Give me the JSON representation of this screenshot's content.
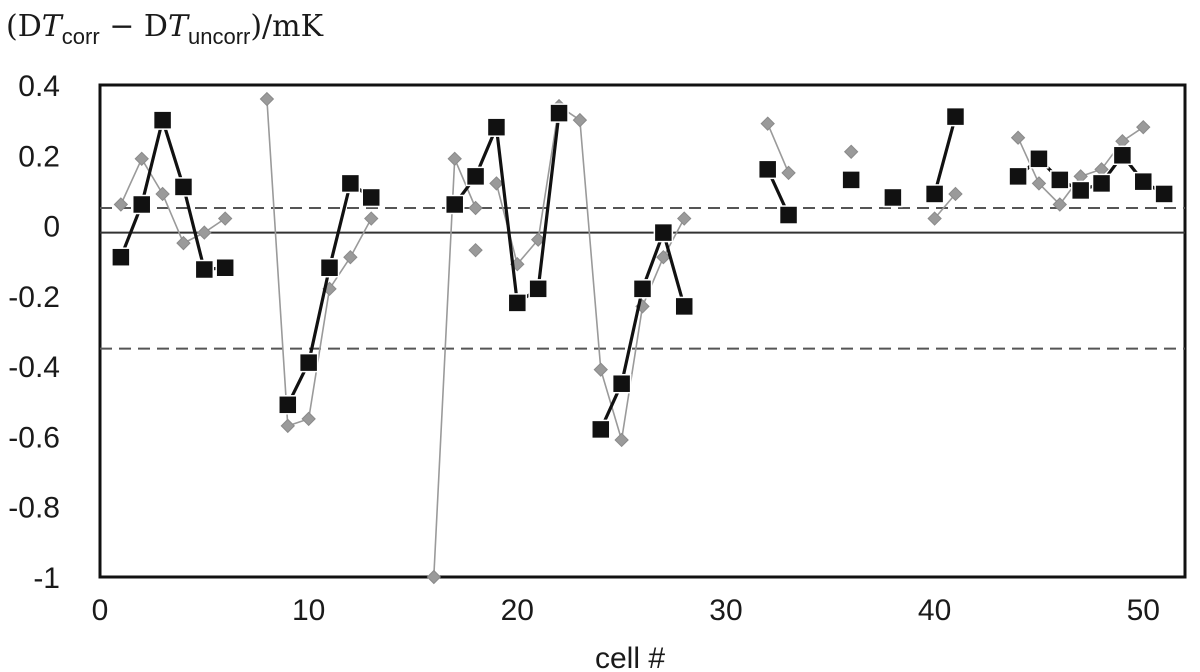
{
  "chart_data": {
    "type": "scatter",
    "ylabel": {
      "open": "(",
      "d1": "D",
      "t1": "T",
      "sub1": "corr",
      "minus": " − ",
      "d2": "D",
      "t2": "T",
      "sub2": "uncorr",
      "close": ")/mK"
    },
    "xlabel": "cell #",
    "xlim": [
      0,
      52
    ],
    "ylim": [
      -1,
      0.4
    ],
    "xticks": [
      "0",
      "10",
      "20",
      "30",
      "40",
      "50"
    ],
    "yticks": [
      "0.4",
      "0.2",
      "0",
      "-0.2",
      "-0.4",
      "-0.6",
      "-0.8",
      "-1"
    ],
    "reference_lines": [
      {
        "y": -0.02,
        "style": "solid",
        "color": "#333333"
      },
      {
        "y": 0.05,
        "style": "dashed",
        "color": "#555555"
      },
      {
        "y": -0.35,
        "style": "dashed",
        "color": "#555555"
      }
    ],
    "series": [
      {
        "style": "black-squares",
        "color": "#111111",
        "segments": [
          [
            [
              1,
              -0.09
            ],
            [
              2,
              0.06
            ],
            [
              3,
              0.3
            ],
            [
              4,
              0.11
            ],
            [
              5,
              -0.125
            ],
            [
              6,
              -0.12
            ]
          ],
          [
            [
              9,
              -0.51
            ],
            [
              10,
              -0.39
            ],
            [
              11,
              -0.12
            ],
            [
              12,
              0.12
            ],
            [
              13,
              0.08
            ]
          ],
          [
            [
              17,
              0.06
            ],
            [
              18,
              0.14
            ],
            [
              19,
              0.28
            ],
            [
              20,
              -0.22
            ],
            [
              21,
              -0.18
            ],
            [
              22,
              0.32
            ]
          ],
          [
            [
              24,
              -0.58
            ],
            [
              25,
              -0.45
            ],
            [
              26,
              -0.18
            ],
            [
              27,
              -0.02
            ],
            [
              28,
              -0.23
            ]
          ],
          [
            [
              32,
              0.16
            ],
            [
              33,
              0.03
            ]
          ],
          [
            [
              36,
              0.13
            ]
          ],
          [
            [
              38,
              0.08
            ]
          ],
          [
            [
              40,
              0.09
            ],
            [
              41,
              0.31
            ]
          ],
          [
            [
              44,
              0.14
            ],
            [
              45,
              0.19
            ],
            [
              46,
              0.13
            ],
            [
              47,
              0.1
            ],
            [
              48,
              0.12
            ],
            [
              49,
              0.2
            ],
            [
              50,
              0.125
            ],
            [
              51,
              0.09
            ]
          ]
        ]
      },
      {
        "style": "gray-diamonds",
        "color": "#9a9a9a",
        "segments": [
          [
            [
              1,
              0.06
            ],
            [
              2,
              0.19
            ],
            [
              3,
              0.09
            ],
            [
              4,
              -0.05
            ],
            [
              5,
              -0.02
            ],
            [
              6,
              0.02
            ]
          ],
          [
            [
              8,
              0.36
            ],
            [
              9,
              -0.57
            ],
            [
              10,
              -0.55
            ],
            [
              11,
              -0.18
            ],
            [
              12,
              -0.09
            ],
            [
              13,
              0.02
            ]
          ],
          [
            [
              16,
              -1.0
            ],
            [
              17,
              0.19
            ],
            [
              18,
              0.05
            ]
          ],
          [
            [
              18,
              -0.07
            ]
          ],
          [
            [
              19,
              0.12
            ],
            [
              20,
              -0.11
            ],
            [
              21,
              -0.04
            ],
            [
              22,
              0.34
            ],
            [
              23,
              0.3
            ],
            [
              24,
              -0.41
            ],
            [
              25,
              -0.61
            ],
            [
              26,
              -0.23
            ],
            [
              27,
              -0.09
            ],
            [
              28,
              0.02
            ]
          ],
          [
            [
              32,
              0.29
            ],
            [
              33,
              0.15
            ]
          ],
          [
            [
              36,
              0.21
            ]
          ],
          [
            [
              40,
              0.02
            ],
            [
              41,
              0.09
            ]
          ],
          [
            [
              44,
              0.25
            ],
            [
              45,
              0.12
            ],
            [
              46,
              0.06
            ],
            [
              47,
              0.14
            ],
            [
              48,
              0.16
            ],
            [
              49,
              0.24
            ],
            [
              50,
              0.28
            ]
          ]
        ]
      }
    ]
  }
}
